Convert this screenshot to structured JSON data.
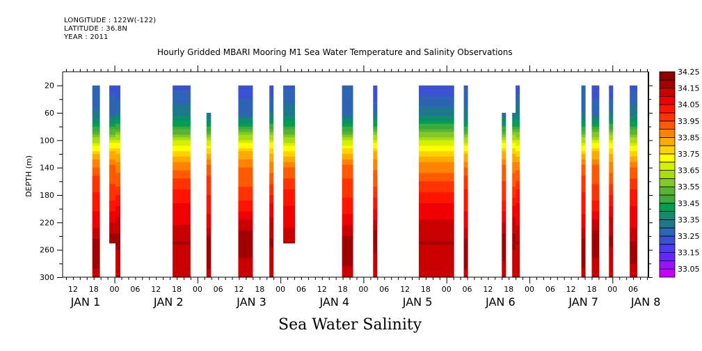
{
  "header": {
    "longitude": "LONGITUDE : 122W(-122)",
    "latitude": "LATITUDE : 36.8N",
    "year": "YEAR : 2011",
    "title": "Hourly Gridded MBARI Mooring M1 Sea Water Temperature and Salinity Observations"
  },
  "footer": {
    "subtitle": "Sea Water Salinity"
  },
  "chart_data": {
    "type": "heatmap",
    "title": "Hourly Gridded MBARI Mooring M1 Sea Water Temperature and Salinity Observations",
    "variable": "Sea Water Salinity",
    "xlabel": "",
    "ylabel": "DEPTH (m)",
    "y_inverted": true,
    "ylim": [
      0,
      300
    ],
    "y_ticks": [
      20,
      60,
      100,
      140,
      180,
      220,
      260,
      300
    ],
    "x_range_hours": [
      0,
      169.4
    ],
    "x_start": "JAN 1 ~09:00",
    "x_tick_labels": [
      "12",
      "18",
      "00",
      "06",
      "12",
      "18",
      "00",
      "06",
      "12",
      "18",
      "00",
      "06",
      "12",
      "18",
      "00",
      "06",
      "12",
      "18",
      "00",
      "06",
      "12",
      "18",
      "00",
      "06",
      "12",
      "18",
      "00",
      "06"
    ],
    "x_tick_hours": [
      3,
      9,
      15,
      21,
      27,
      33,
      39,
      45,
      51,
      57,
      63,
      69,
      75,
      81,
      87,
      93,
      99,
      105,
      111,
      117,
      123,
      129,
      135,
      141,
      147,
      153,
      159,
      165
    ],
    "day_labels": [
      {
        "label": "JAN  1",
        "hour": 3
      },
      {
        "label": "JAN  2",
        "hour": 27
      },
      {
        "label": "JAN  3",
        "hour": 51
      },
      {
        "label": "JAN  4",
        "hour": 75
      },
      {
        "label": "JAN  5",
        "hour": 99
      },
      {
        "label": "JAN  6",
        "hour": 123
      },
      {
        "label": "JAN  7",
        "hour": 147
      },
      {
        "label": "JAN  8",
        "hour": 165
      }
    ],
    "colorbar": {
      "levels": [
        33.05,
        33.1,
        33.15,
        33.2,
        33.25,
        33.3,
        33.35,
        33.4,
        33.45,
        33.5,
        33.55,
        33.6,
        33.65,
        33.7,
        33.75,
        33.8,
        33.85,
        33.9,
        33.95,
        34.0,
        34.05,
        34.1,
        34.15,
        34.2,
        34.25,
        34.3
      ],
      "labels": [
        "33.05",
        "33.15",
        "33.25",
        "33.35",
        "33.45",
        "33.55",
        "33.65",
        "33.75",
        "33.85",
        "33.95",
        "34.05",
        "34.15",
        "34.25"
      ],
      "colors": [
        "#c800ff",
        "#9614ff",
        "#6428ff",
        "#4b3cf0",
        "#3c50d2",
        "#2d64b4",
        "#1e788c",
        "#0f8c6e",
        "#00a050",
        "#3caa3c",
        "#5ab432",
        "#82c828",
        "#aadc14",
        "#d2f000",
        "#ffff00",
        "#ffd200",
        "#ffaa00",
        "#ff8200",
        "#ff5a00",
        "#ff3200",
        "#ff1400",
        "#f00000",
        "#c80000",
        "#a00000",
        "#8c0000"
      ]
    },
    "depth_profile_typical": [
      {
        "depth": 20,
        "salinity": 33.28
      },
      {
        "depth": 60,
        "salinity": 33.35
      },
      {
        "depth": 80,
        "salinity": 33.5
      },
      {
        "depth": 100,
        "salinity": 33.7
      },
      {
        "depth": 120,
        "salinity": 33.85
      },
      {
        "depth": 140,
        "salinity": 33.95
      },
      {
        "depth": 180,
        "salinity": 34.05
      },
      {
        "depth": 220,
        "salinity": 34.15
      },
      {
        "depth": 250,
        "salinity": 34.22
      },
      {
        "depth": 300,
        "salinity": 34.17
      }
    ],
    "segments": [
      {
        "start_hour": 8.6,
        "end_hour": 10.8,
        "top_depth": 20,
        "bottom_depth": 300
      },
      {
        "start_hour": 13.5,
        "end_hour": 15.3,
        "top_depth": 20,
        "bottom_depth": 250
      },
      {
        "start_hour": 15.3,
        "end_hour": 16.7,
        "top_depth": 20,
        "bottom_depth": 300
      },
      {
        "start_hour": 31.8,
        "end_hour": 37.0,
        "top_depth": 20,
        "bottom_depth": 300
      },
      {
        "start_hour": 41.6,
        "end_hour": 42.9,
        "top_depth": 60,
        "bottom_depth": 300
      },
      {
        "start_hour": 50.8,
        "end_hour": 55.0,
        "top_depth": 20,
        "bottom_depth": 300
      },
      {
        "start_hour": 59.8,
        "end_hour": 61.0,
        "top_depth": 20,
        "bottom_depth": 300
      },
      {
        "start_hour": 63.8,
        "end_hour": 67.2,
        "top_depth": 20,
        "bottom_depth": 250
      },
      {
        "start_hour": 80.8,
        "end_hour": 84.0,
        "top_depth": 20,
        "bottom_depth": 300
      },
      {
        "start_hour": 89.8,
        "end_hour": 91.0,
        "top_depth": 20,
        "bottom_depth": 300
      },
      {
        "start_hour": 103.0,
        "end_hour": 113.2,
        "top_depth": 20,
        "bottom_depth": 300
      },
      {
        "start_hour": 116.0,
        "end_hour": 117.2,
        "top_depth": 20,
        "bottom_depth": 300
      },
      {
        "start_hour": 127.0,
        "end_hour": 128.2,
        "top_depth": 60,
        "bottom_depth": 300
      },
      {
        "start_hour": 130.0,
        "end_hour": 131.0,
        "top_depth": 60,
        "bottom_depth": 300
      },
      {
        "start_hour": 131.0,
        "end_hour": 132.2,
        "top_depth": 20,
        "bottom_depth": 300
      },
      {
        "start_hour": 150.0,
        "end_hour": 151.2,
        "top_depth": 20,
        "bottom_depth": 300
      },
      {
        "start_hour": 153.0,
        "end_hour": 155.2,
        "top_depth": 20,
        "bottom_depth": 300
      },
      {
        "start_hour": 158.0,
        "end_hour": 159.2,
        "top_depth": 20,
        "bottom_depth": 300
      },
      {
        "start_hour": 164.0,
        "end_hour": 166.2,
        "top_depth": 20,
        "bottom_depth": 300
      }
    ]
  }
}
